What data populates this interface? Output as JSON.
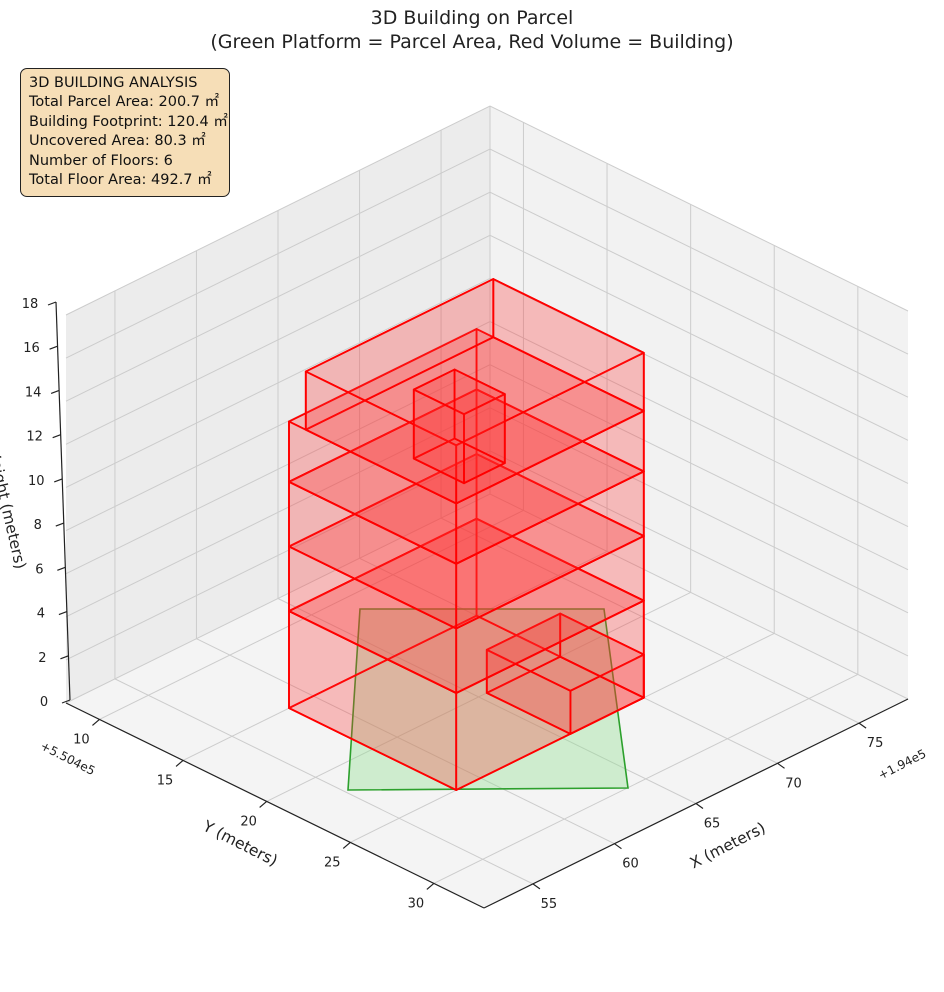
{
  "chart_data": {
    "type": "3d-boxes",
    "title": "3D Building on Parcel",
    "subtitle": "(Green Platform = Parcel Area, Red Volume = Building)",
    "xlabel": "X (meters)",
    "ylabel": "Y (meters)",
    "zlabel": "Height (meters)",
    "x_offset": "+1.94e5",
    "y_offset": "+5.504e5",
    "x_ticks": [
      "55",
      "60",
      "65",
      "70",
      "75"
    ],
    "y_ticks": [
      "10",
      "15",
      "20",
      "25",
      "30"
    ],
    "z_ticks": [
      "0",
      "2",
      "4",
      "6",
      "8",
      "10",
      "12",
      "14",
      "16",
      "18"
    ],
    "xlim": [
      52,
      78
    ],
    "ylim": [
      8,
      33
    ],
    "zlim": [
      0,
      18
    ],
    "parcel": {
      "color": "#2ca02c",
      "fill": "#90e090"
    },
    "building": {
      "color": "#ff0000",
      "blocks": [
        {
          "x0": 58.5,
          "x1": 70,
          "y0": 15,
          "y1": 25,
          "z0": 0,
          "z1": 4.5
        },
        {
          "x0": 65.5,
          "x1": 70,
          "y0": 20,
          "y1": 25,
          "z0": 0,
          "z1": 2
        },
        {
          "x0": 58.5,
          "x1": 70,
          "y0": 15,
          "y1": 25,
          "z0": 4.5,
          "z1": 7.5
        },
        {
          "x0": 58.5,
          "x1": 70,
          "y0": 15,
          "y1": 25,
          "z0": 7.5,
          "z1": 10.5
        },
        {
          "x0": 58.5,
          "x1": 70,
          "y0": 15,
          "y1": 25,
          "z0": 10.5,
          "z1": 13.3
        },
        {
          "x0": 58.5,
          "x1": 70,
          "y0": 16,
          "y1": 25,
          "z0": 13.3,
          "z1": 16
        },
        {
          "x0": 60,
          "x1": 62.5,
          "y0": 21,
          "y1": 24,
          "z0": 13.3,
          "z1": 16.5
        }
      ]
    }
  },
  "info": {
    "heading": "3D BUILDING ANALYSIS",
    "lines": [
      "Total Parcel Area: 200.7 ㎡",
      "Building Footprint: 120.4 ㎡",
      "Uncovered Area: 80.3 ㎡",
      "Number of Floors: 6",
      "Total Floor Area: 492.7 ㎡"
    ]
  }
}
